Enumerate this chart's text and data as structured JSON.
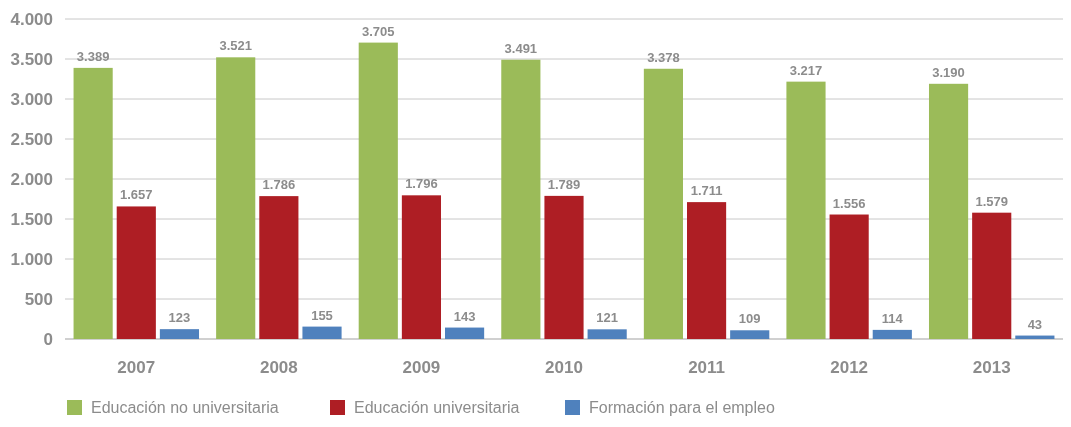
{
  "chart_data": {
    "type": "bar",
    "categories": [
      "2007",
      "2008",
      "2009",
      "2010",
      "2011",
      "2012",
      "2013"
    ],
    "series": [
      {
        "name": "Educación no universitaria",
        "color": "#9bbb59",
        "values": [
          3389,
          3521,
          3705,
          3491,
          3378,
          3217,
          3190
        ],
        "value_labels": [
          "3.389",
          "3.521",
          "3.705",
          "3.491",
          "3.378",
          "3.217",
          "3.190"
        ]
      },
      {
        "name": "Educación universitaria",
        "color": "#ae1e24",
        "values": [
          1657,
          1786,
          1796,
          1789,
          1711,
          1556,
          1579
        ],
        "value_labels": [
          "1.657",
          "1.786",
          "1.796",
          "1.789",
          "1.711",
          "1.556",
          "1.579"
        ]
      },
      {
        "name": "Formación para el empleo",
        "color": "#4f81bd",
        "values": [
          123,
          155,
          143,
          121,
          109,
          114,
          43
        ],
        "value_labels": [
          "123",
          "155",
          "143",
          "121",
          "109",
          "114",
          "43"
        ]
      }
    ],
    "ylim": [
      0,
      4000
    ],
    "yticks": [
      {
        "value": 0,
        "label": "0"
      },
      {
        "value": 500,
        "label": "500"
      },
      {
        "value": 1000,
        "label": "1.000"
      },
      {
        "value": 1500,
        "label": "1.500"
      },
      {
        "value": 2000,
        "label": "2.000"
      },
      {
        "value": 2500,
        "label": "2.500"
      },
      {
        "value": 3000,
        "label": "3.000"
      },
      {
        "value": 3500,
        "label": "3.500"
      },
      {
        "value": 4000,
        "label": "4.000"
      }
    ],
    "grid": "y",
    "legend": "bottom left"
  }
}
